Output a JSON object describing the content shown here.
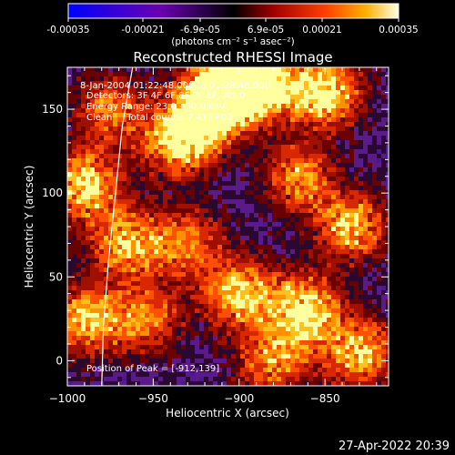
{
  "colorbar": {
    "ticks": [
      "-0.00035",
      "-0.00021",
      "-6.9e-05",
      "6.9e-05",
      "0.00021",
      "0.00035"
    ],
    "unit_label": "(photons cm⁻² s⁻¹ asec⁻²)",
    "range": [
      -0.00035,
      0.00035
    ],
    "colors": [
      "#1010ff",
      "#6a00a8",
      "#a00000",
      "#e83000",
      "#ff9000",
      "#ffffe0"
    ]
  },
  "chart_data": {
    "type": "heatmap",
    "title": "Reconstructed RHESSI Image",
    "xlabel": "Heliocentric X (arcsec)",
    "ylabel": "Heliocentric Y (arcsec)",
    "xlim": [
      -1000,
      -813
    ],
    "ylim": [
      -15,
      175
    ],
    "xticks": [
      -1000,
      -950,
      -900,
      -850
    ],
    "xtick_labels": [
      "−1000",
      "−950",
      "−900",
      "−850"
    ],
    "yticks": [
      0,
      50,
      100,
      150
    ],
    "ytick_labels": [
      "0",
      "50",
      "100",
      "150"
    ],
    "annotations": [
      "8-Jan-2004 01:22:48.000 to 01:28:48.000",
      "Detectors: 3F 4F 6F 8F 7F 8F, Att 0",
      "Energy Range: 23.0 - 50.0 keV",
      "Clean     Total counts: 7.41E+03"
    ],
    "peak_label": "Position of Peak = [-912,139]",
    "peak": [
      -912,
      139
    ],
    "limb_points": [
      [
        -962,
        175
      ],
      [
        -968,
        140
      ],
      [
        -972,
        100
      ],
      [
        -976,
        60
      ],
      [
        -979,
        20
      ],
      [
        -980,
        -15
      ]
    ],
    "bright_regions": [
      {
        "x": -918,
        "y": 150,
        "level": 1.0
      },
      {
        "x": -905,
        "y": 165,
        "level": 0.9
      },
      {
        "x": -885,
        "y": 165,
        "level": 0.8
      },
      {
        "x": -850,
        "y": 160,
        "level": 0.85
      },
      {
        "x": -935,
        "y": 130,
        "level": 0.75
      },
      {
        "x": -990,
        "y": 105,
        "level": 0.8
      },
      {
        "x": -965,
        "y": 70,
        "level": 0.7
      },
      {
        "x": -990,
        "y": 25,
        "level": 0.7
      },
      {
        "x": -955,
        "y": 25,
        "level": 0.6
      },
      {
        "x": -900,
        "y": 40,
        "level": 0.75
      },
      {
        "x": -862,
        "y": 30,
        "level": 0.85
      },
      {
        "x": -835,
        "y": 80,
        "level": 0.7
      },
      {
        "x": -865,
        "y": 110,
        "level": 0.6
      },
      {
        "x": -930,
        "y": 70,
        "level": 0.55
      },
      {
        "x": -880,
        "y": 0,
        "level": 0.6
      },
      {
        "x": -830,
        "y": 5,
        "level": 0.7
      },
      {
        "x": -975,
        "y": 150,
        "level": 0.55
      }
    ]
  },
  "timestamp": "27-Apr-2022 20:39"
}
